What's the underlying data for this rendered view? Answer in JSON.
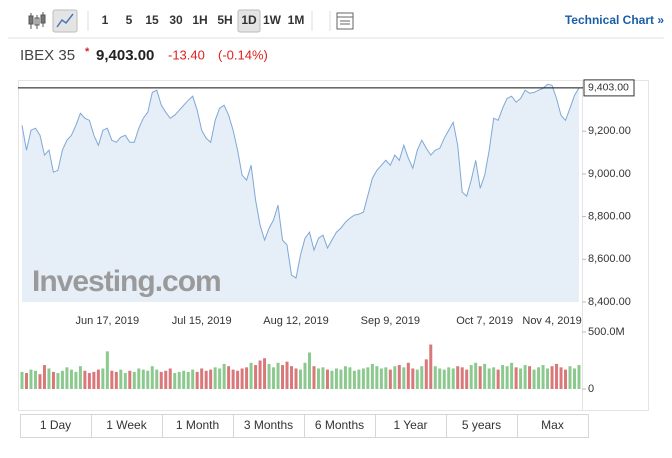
{
  "toolbar": {
    "intervals": [
      "1",
      "5",
      "15",
      "30",
      "1H",
      "5H",
      "1D",
      "1W",
      "1M"
    ],
    "active_interval": 6,
    "link": "Technical Chart »"
  },
  "quote": {
    "name": "IBEX 35",
    "price": "9,403.00",
    "change": "-13.40",
    "change_pct": "(-0.14%)"
  },
  "watermark": "Investing.com",
  "ranges": [
    "1 Day",
    "1 Week",
    "1 Month",
    "3 Months",
    "6 Months",
    "1 Year",
    "5 years",
    "Max"
  ],
  "chart_data": {
    "type": "line",
    "categories": [
      null,
      null,
      null,
      null,
      null,
      null,
      null,
      null,
      null,
      null,
      null,
      null,
      null,
      null,
      null,
      null,
      null,
      null,
      null,
      "Jun 17, 2019",
      null,
      null,
      null,
      null,
      null,
      null,
      null,
      null,
      null,
      null,
      null,
      null,
      null,
      null,
      null,
      null,
      null,
      null,
      null,
      null,
      "Jul 15, 2019",
      null,
      null,
      null,
      null,
      null,
      null,
      null,
      null,
      null,
      null,
      null,
      null,
      null,
      null,
      null,
      null,
      null,
      null,
      null,
      null,
      "Aug 12, 2019",
      null,
      null,
      null,
      null,
      null,
      null,
      null,
      null,
      null,
      null,
      null,
      null,
      null,
      null,
      null,
      null,
      null,
      null,
      null,
      null,
      "Sep 9, 2019",
      null,
      null,
      null,
      null,
      null,
      null,
      null,
      null,
      null,
      null,
      null,
      null,
      null,
      null,
      null,
      null,
      null,
      null,
      null,
      null,
      "Oct 7, 2019",
      null,
      null,
      null,
      null,
      null,
      null,
      null,
      null,
      null,
      null,
      null,
      null,
      null,
      null,
      "Nov 4, 2019",
      null,
      null,
      null,
      null,
      null,
      null
    ],
    "series": [
      {
        "name": "IBEX 35",
        "color": "#7fa8d6",
        "fill": "#e6eef8",
        "values": [
          9228,
          9111,
          9205,
          9214,
          9181,
          9088,
          9111,
          9008,
          9017,
          9111,
          9158,
          9181,
          9228,
          9284,
          9261,
          9251,
          9181,
          9134,
          9205,
          9214,
          9158,
          9148,
          9172,
          9181,
          9148,
          9148,
          9214,
          9261,
          9289,
          9382,
          9392,
          9322,
          9289,
          9261,
          9275,
          9298,
          9322,
          9345,
          9364,
          9298,
          9205,
          9167,
          9148,
          9251,
          9308,
          9322,
          9275,
          9205,
          9111,
          8994,
          8971,
          9041,
          8877,
          8760,
          8690,
          8746,
          8784,
          8854,
          8690,
          8667,
          8526,
          8512,
          8620,
          8699,
          8727,
          8643,
          8699,
          8713,
          8653,
          8690,
          8727,
          8746,
          8774,
          8793,
          8807,
          8812,
          8821,
          8900,
          8980,
          9017,
          9041,
          9064,
          9041,
          9088,
          9064,
          9134,
          9074,
          9027,
          9111,
          9158,
          9120,
          9088,
          9111,
          9120,
          9167,
          9205,
          9242,
          9134,
          8915,
          8896,
          8971,
          9064,
          8933,
          8994,
          9111,
          9261,
          9251,
          9308,
          9354,
          9364,
          9336,
          9354,
          9392,
          9378,
          9382,
          9392,
          9401,
          9420,
          9415,
          9354,
          9275,
          9251,
          9308,
          9368,
          9403
        ]
      },
      {
        "type": "bar",
        "axis": "y2",
        "up_color": "#8cc98e",
        "down_color": "#d9777b",
        "values": [
          150000000,
          140000000,
          170000000,
          160000000,
          130000000,
          210000000,
          180000000,
          150000000,
          140000000,
          160000000,
          190000000,
          170000000,
          150000000,
          200000000,
          160000000,
          140000000,
          150000000,
          170000000,
          180000000,
          330000000,
          160000000,
          150000000,
          170000000,
          140000000,
          160000000,
          150000000,
          180000000,
          170000000,
          160000000,
          200000000,
          170000000,
          150000000,
          160000000,
          180000000,
          140000000,
          150000000,
          160000000,
          150000000,
          170000000,
          150000000,
          180000000,
          160000000,
          170000000,
          190000000,
          180000000,
          220000000,
          200000000,
          170000000,
          160000000,
          180000000,
          190000000,
          230000000,
          210000000,
          250000000,
          270000000,
          220000000,
          190000000,
          230000000,
          210000000,
          240000000,
          200000000,
          180000000,
          170000000,
          230000000,
          320000000,
          200000000,
          180000000,
          190000000,
          170000000,
          160000000,
          180000000,
          170000000,
          200000000,
          190000000,
          160000000,
          170000000,
          180000000,
          190000000,
          220000000,
          200000000,
          180000000,
          190000000,
          170000000,
          200000000,
          210000000,
          190000000,
          230000000,
          180000000,
          170000000,
          200000000,
          260000000,
          390000000,
          200000000,
          180000000,
          170000000,
          190000000,
          180000000,
          200000000,
          190000000,
          170000000,
          210000000,
          230000000,
          200000000,
          220000000,
          180000000,
          190000000,
          170000000,
          210000000,
          200000000,
          230000000,
          190000000,
          180000000,
          210000000,
          200000000,
          170000000,
          190000000,
          210000000,
          180000000,
          200000000,
          220000000,
          190000000,
          170000000,
          200000000,
          180000000,
          210000000
        ]
      }
    ],
    "ylim": [
      8400,
      9440
    ],
    "yticks": [
      {
        "value": 8400,
        "label": "8,400.00"
      },
      {
        "value": 8600,
        "label": "8,600.00"
      },
      {
        "value": 8800,
        "label": "8,800.00"
      },
      {
        "value": 9000,
        "label": "9,000.00"
      },
      {
        "value": 9200,
        "label": "9,200.00"
      }
    ],
    "y2lim": [
      0,
      500000000
    ],
    "y2ticks": [
      {
        "value": 500000000,
        "label": "500.0M"
      },
      0
    ],
    "grid": false
  }
}
